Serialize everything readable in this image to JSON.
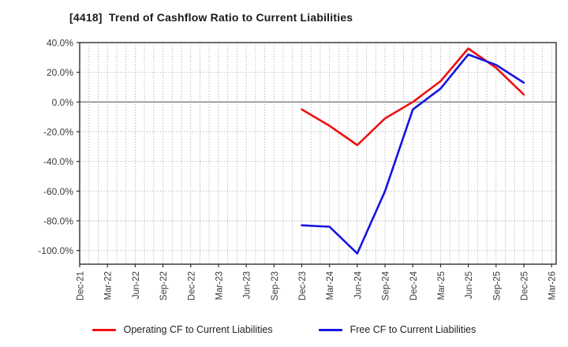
{
  "chart_data": {
    "type": "line",
    "title": "[4418]  Trend of Cashflow Ratio to Current Liabilities",
    "categories": [
      "Dec-21",
      "Mar-22",
      "Jun-22",
      "Sep-22",
      "Dec-22",
      "Mar-23",
      "Jun-23",
      "Sep-23",
      "Dec-23",
      "Mar-24",
      "Jun-24",
      "Sep-24",
      "Dec-24",
      "Mar-25",
      "Jun-25",
      "Sep-25",
      "Dec-25",
      "Mar-26"
    ],
    "series": [
      {
        "name": "Operating CF to Current Liabilities",
        "color": "#ee1111",
        "values": [
          null,
          null,
          null,
          null,
          null,
          null,
          null,
          null,
          -5,
          -16,
          -29,
          -11,
          0,
          14,
          36,
          23,
          5,
          null
        ]
      },
      {
        "name": "Free CF to Current Liabilities",
        "color": "#1414e0",
        "values": [
          null,
          null,
          null,
          null,
          null,
          null,
          null,
          null,
          -83,
          -84,
          -102,
          -60,
          -5,
          9,
          32,
          25,
          13,
          null
        ]
      }
    ],
    "ylabel": "",
    "xlabel": "",
    "ylim": [
      -109.2,
      40
    ],
    "yticks": [
      40,
      20,
      0,
      -20,
      -40,
      -60,
      -80,
      -100
    ],
    "ytick_labels": [
      "40.0%",
      "20.0%",
      "0.0%",
      "-20.0%",
      "-40.0%",
      "-60.0%",
      "-80.0%",
      "-100.0%"
    ],
    "grid": "dotted, vertical lines monthly, horizontal every 20 points, solid line at 0%",
    "legend_position": "bottom",
    "axis_color": "#2e2e2e",
    "grid_color": "#999999",
    "zero_line_color": "#7d7d7d",
    "tick_label_color": "#3a3a3a"
  }
}
